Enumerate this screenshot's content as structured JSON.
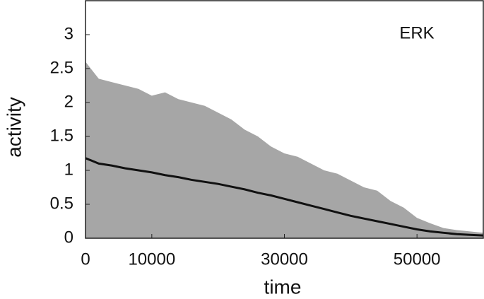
{
  "chart_data": {
    "type": "line",
    "annotation": "ERK",
    "x_label": "time",
    "y_label": "activity",
    "x": [
      0,
      2000,
      4000,
      6000,
      8000,
      10000,
      12000,
      14000,
      16000,
      18000,
      20000,
      22000,
      24000,
      26000,
      28000,
      30000,
      32000,
      34000,
      36000,
      38000,
      40000,
      42000,
      44000,
      46000,
      48000,
      50000,
      52000,
      54000,
      56000,
      58000,
      60000
    ],
    "series": [
      {
        "color": "#a6a6a6",
        "fill": true,
        "values": [
          2.6,
          2.35,
          2.3,
          2.25,
          2.2,
          2.1,
          2.15,
          2.05,
          2.0,
          1.95,
          1.85,
          1.75,
          1.6,
          1.5,
          1.35,
          1.25,
          1.2,
          1.1,
          1.0,
          0.95,
          0.85,
          0.75,
          0.7,
          0.55,
          0.45,
          0.3,
          0.22,
          0.15,
          0.12,
          0.1,
          0.08
        ]
      },
      {
        "color": "#111111",
        "values": [
          1.18,
          1.1,
          1.07,
          1.03,
          1.0,
          0.97,
          0.93,
          0.9,
          0.86,
          0.83,
          0.8,
          0.76,
          0.72,
          0.67,
          0.63,
          0.58,
          0.53,
          0.48,
          0.43,
          0.38,
          0.33,
          0.29,
          0.25,
          0.21,
          0.17,
          0.13,
          0.1,
          0.08,
          0.06,
          0.05,
          0.04
        ]
      }
    ],
    "xlim": [
      0,
      60000
    ],
    "xticks": [
      0,
      10000,
      30000,
      50000
    ],
    "ylim": [
      0,
      3.5
    ],
    "yticks": [
      0,
      0.5,
      1,
      1.5,
      2,
      2.5,
      3
    ]
  }
}
